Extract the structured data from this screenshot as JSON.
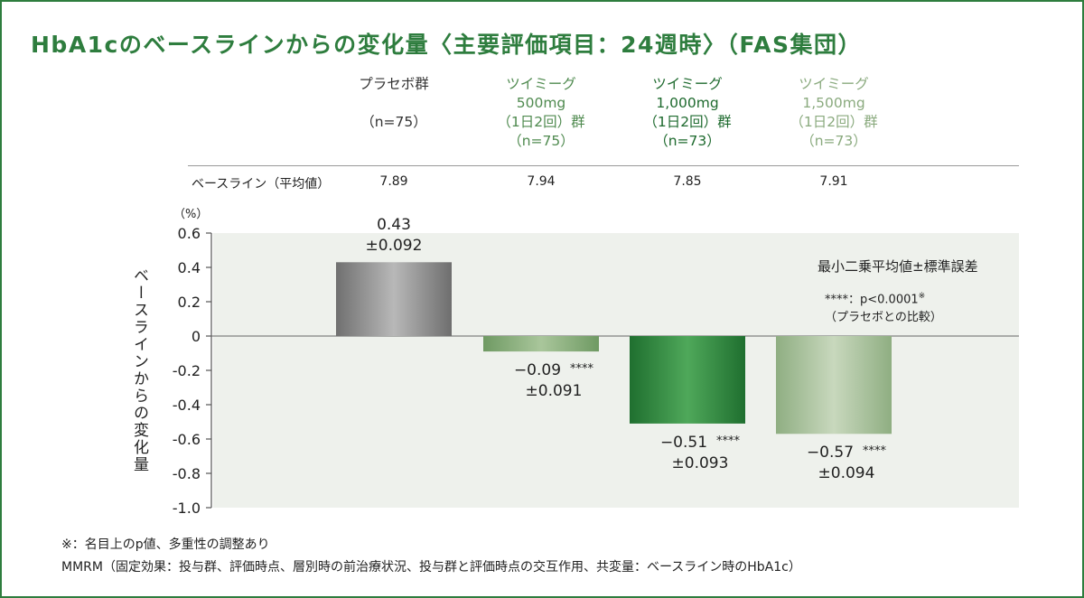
{
  "title": "HbA1cのベースラインからの変化量〈主要評価項目：24週時〉（FAS集団）",
  "groups": [
    {
      "line1": "プラセボ群",
      "line2": "",
      "line3": "（n=75）",
      "line4": "",
      "color": "#333333"
    },
    {
      "line1": "ツイミーグ",
      "line2": "500mg",
      "line3": "（1日2回）群",
      "line4": "（n=75）",
      "color": "#4f8a4f"
    },
    {
      "line1": "ツイミーグ",
      "line2": "1,000mg",
      "line3": "（1日2回）群",
      "line4": "（n=73）",
      "color": "#1e6a2e"
    },
    {
      "line1": "ツイミーグ",
      "line2": "1,500mg",
      "line3": "（1日2回）群",
      "line4": "（n=73）",
      "color": "#8aaa7e"
    }
  ],
  "baseline": {
    "label": "ベースライン（平均値）",
    "values": [
      "7.89",
      "7.94",
      "7.85",
      "7.91"
    ]
  },
  "chart_data": {
    "type": "bar",
    "categories": [
      "プラセボ群",
      "ツイミーグ500mg（1日2回）群",
      "ツイミーグ1,000mg（1日2回）群",
      "ツイミーグ1,500mg（1日2回）群"
    ],
    "values": [
      0.43,
      -0.09,
      -0.51,
      -0.57
    ],
    "errors": [
      "±0.092",
      "±0.091",
      "±0.093",
      "±0.094"
    ],
    "value_labels": [
      "0.43",
      "−0.09",
      "−0.51",
      "−0.57"
    ],
    "significance": [
      "",
      "****",
      "****",
      "****"
    ],
    "ylabel": "ベースラインからの変化量",
    "unit": "（%）",
    "ylim": [
      -1.0,
      0.6
    ],
    "yticks": [
      "0.6",
      "0.4",
      "0.2",
      "0",
      "-0.2",
      "-0.4",
      "-0.6",
      "-0.8",
      "-1.0"
    ],
    "ytick_values": [
      0.6,
      0.4,
      0.2,
      0,
      -0.2,
      -0.4,
      -0.6,
      -0.8,
      -1.0
    ],
    "bar_colors": [
      "#8c8c8c",
      "#8ab07a",
      "#2e8a40",
      "#a3bd94"
    ]
  },
  "legend": {
    "line1": "最小二乗平均値±標準誤差",
    "line2": "****：p<0.0001",
    "line2_mark": "※",
    "line3": "（プラセボとの比較）"
  },
  "footnotes": [
    "※：名目上のp値、多重性の調整あり",
    "MMRM（固定効果：投与群、評価時点、層別時の前治療状況、投与群と評価時点の交互作用、共変量：ベースライン時のHbA1c）"
  ]
}
